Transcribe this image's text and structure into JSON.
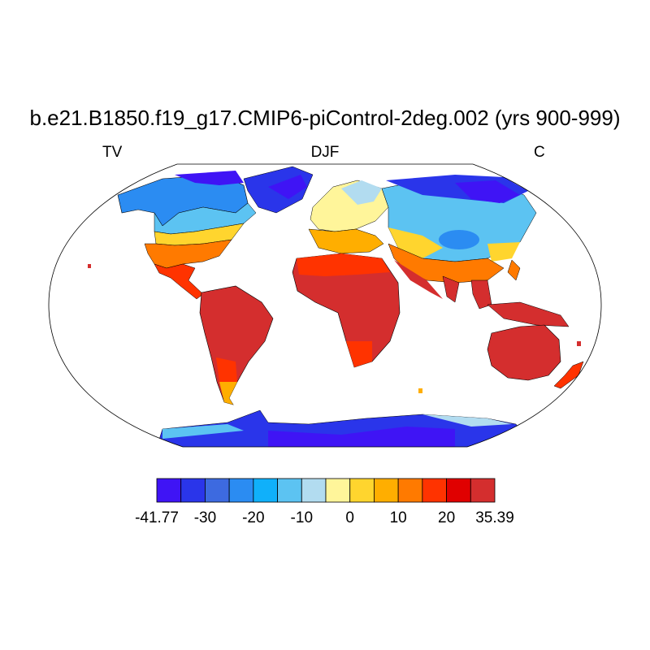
{
  "header": {
    "title": "b.e21.B1850.f19_g17.CMIP6-piControl-2deg.002 (yrs 900-999)",
    "left_label": "TV",
    "center_label": "DJF",
    "right_label": "C"
  },
  "colorbar": {
    "colors": [
      "#3f14f5",
      "#2a35ea",
      "#3d6ae0",
      "#2b8cf2",
      "#10b0fa",
      "#5cc3f2",
      "#b2dcf0",
      "#fff59a",
      "#ffd52e",
      "#ffae00",
      "#ff7a00",
      "#ff3300",
      "#e00000",
      "#d42e2e"
    ],
    "tick_labels": [
      "-41.77",
      "-30",
      "-20",
      "-10",
      "0",
      "10",
      "20",
      "35.39"
    ]
  },
  "chart_data": {
    "type": "heatmap",
    "title": "b.e21.B1850.f19_g17.CMIP6-piControl-2deg.002 (yrs 900-999)",
    "variable": "TV",
    "season": "DJF",
    "units": "C",
    "projection": "Robinson",
    "range": [
      -41.77,
      35.39
    ],
    "levels": [
      -35,
      -30,
      -25,
      -20,
      -15,
      -10,
      -5,
      0,
      5,
      10,
      15,
      20,
      25
    ]
  }
}
